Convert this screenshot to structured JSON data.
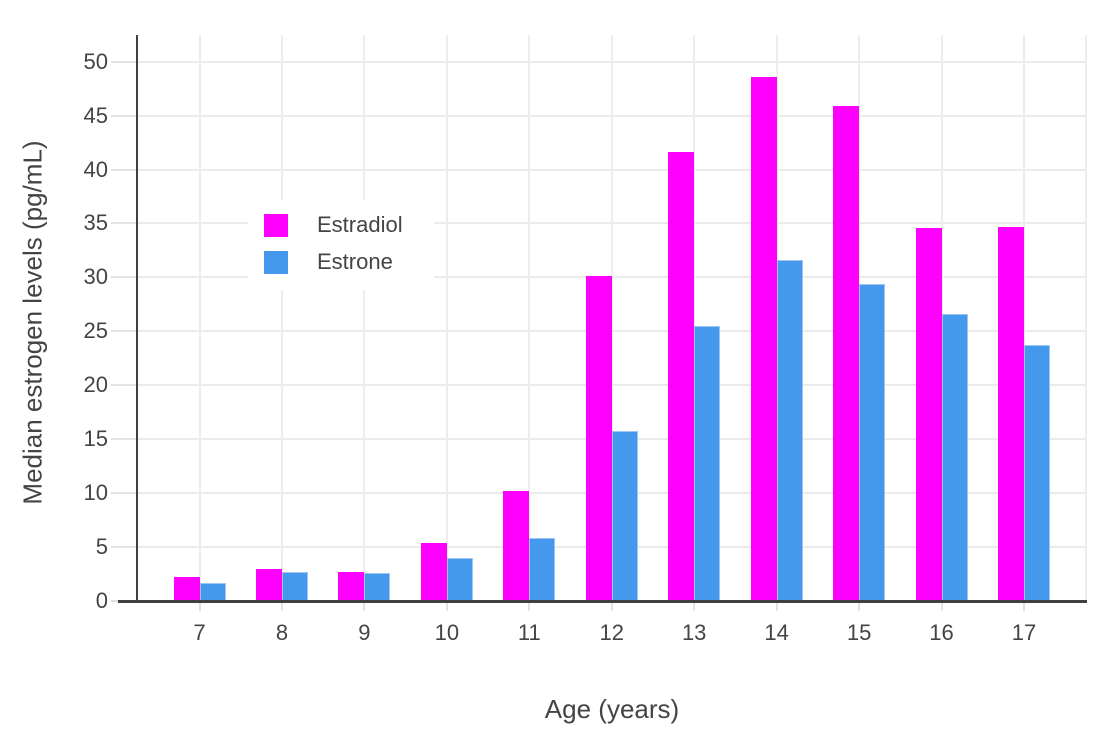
{
  "chart_data": {
    "type": "bar",
    "title": "",
    "xlabel": "Age (years)",
    "ylabel": "Median estrogen levels (pg/mL)",
    "categories": [
      "7",
      "8",
      "9",
      "10",
      "11",
      "12",
      "13",
      "14",
      "15",
      "16",
      "17"
    ],
    "series": [
      {
        "name": "Estradiol",
        "color": "#ff00ff",
        "values": [
          2.2,
          3.0,
          2.7,
          5.4,
          10.2,
          30.1,
          41.6,
          48.6,
          45.9,
          34.6,
          34.7
        ]
      },
      {
        "name": "Estrone",
        "color": "#4599ec",
        "values": [
          1.7,
          2.7,
          2.6,
          4.0,
          5.8,
          15.8,
          25.5,
          31.6,
          29.4,
          26.6,
          23.7
        ]
      }
    ],
    "yticks": [
      0,
      5,
      10,
      15,
      20,
      25,
      30,
      35,
      40,
      45,
      50
    ],
    "ylim": [
      0,
      52.5
    ],
    "grid": "both",
    "legend_position": "inside-top-left",
    "colors": {
      "axis": "#404040",
      "grid": "#ebebeb",
      "text": "#444444",
      "background": "#ffffff"
    }
  }
}
